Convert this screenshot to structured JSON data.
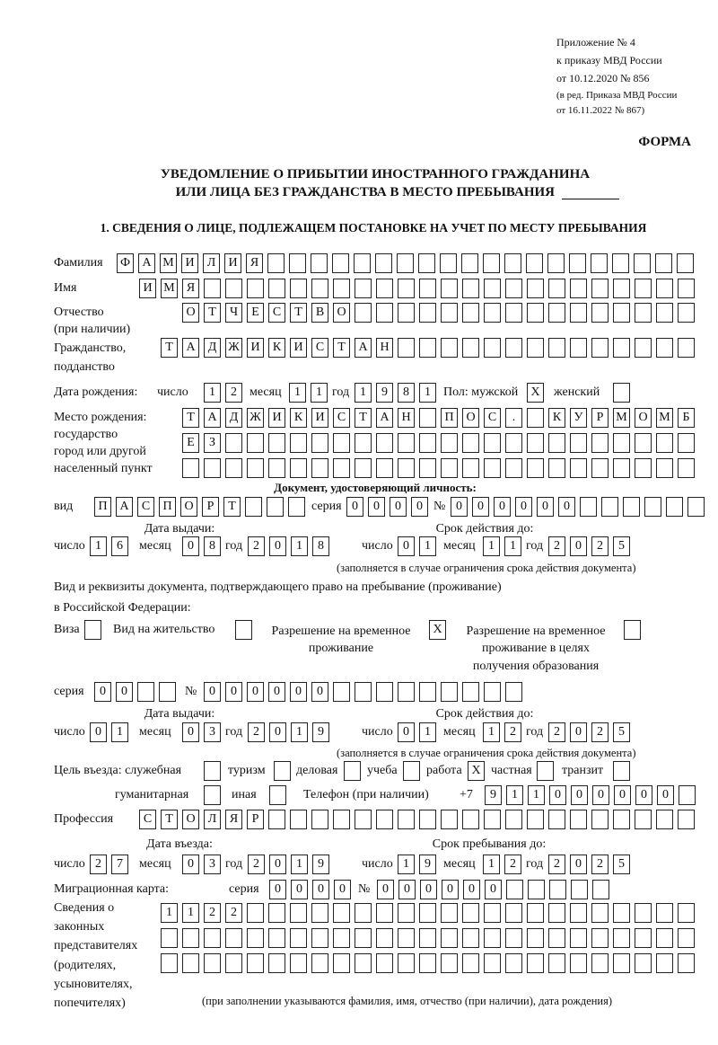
{
  "header": {
    "appendix": [
      "Приложение № 4",
      "к приказу МВД России",
      "от 10.12.2020 № 856"
    ],
    "amendment": [
      "(в ред. Приказа МВД России",
      "от 16.11.2022 № 867)"
    ],
    "form_label": "ФОРМА",
    "title_line1": "УВЕДОМЛЕНИЕ О ПРИБЫТИИ ИНОСТРАННОГО ГРАЖДАНИНА",
    "title_line2": "ИЛИ ЛИЦА БЕЗ ГРАЖДАНСТВА В МЕСТО ПРЕБЫВАНИЯ",
    "section1": "1. СВЕДЕНИЯ О ЛИЦЕ, ПОДЛЕЖАЩЕМ ПОСТАНОВКЕ НА УЧЕТ ПО МЕСТУ ПРЕБЫВАНИЯ"
  },
  "labels": {
    "surname": "Фамилия",
    "name": "Имя",
    "patronymic": "Отчество",
    "patronymic_note": "(при наличии)",
    "citizenship": "Гражданство,",
    "citizenship2": "подданство",
    "birth_date": "Дата рождения:",
    "day": "число",
    "month": "месяц",
    "year": "год",
    "sex": "Пол: мужской",
    "female": "женский",
    "birth_place": [
      "Место рождения:",
      "государство",
      "город или другой",
      "населенный пункт"
    ],
    "id_doc": "Документ, удостоверяющий личность:",
    "kind": "вид",
    "series": "серия",
    "number": "№",
    "issue_date": "Дата выдачи:",
    "valid_until": "Срок действия до:",
    "validity_note": "(заполняется в случае ограничения срока действия документа)",
    "residence_doc": "Вид и реквизиты документа, подтверждающего право на пребывание (проживание)",
    "residence_doc2": "в Российской Федерации:",
    "visa": "Виза",
    "residence_permit": "Вид на жительство",
    "temp_permit": [
      "Разрешение на временное",
      "проживание"
    ],
    "temp_permit_edu": [
      "Разрешение на временное",
      "проживание в целях",
      "получения образования"
    ],
    "purpose": "Цель въезда: служебная",
    "tourism": "туризм",
    "business": "деловая",
    "study": "учеба",
    "work": "работа",
    "private": "частная",
    "transit": "транзит",
    "humanitarian": "гуманитарная",
    "other": "иная",
    "phone": "Телефон (при наличии)",
    "phone_prefix": "+7",
    "profession": "Профессия",
    "entry_date": "Дата въезда:",
    "stay_until": "Срок пребывания до:",
    "migration_card": "Миграционная карта:",
    "representatives": [
      "Сведения о",
      "законных",
      "представителях",
      "(родителях,",
      "усыновителях,",
      "попечителях)"
    ],
    "representatives_note": "(при заполнении указываются фамилия, имя, отчество (при наличии), дата рождения)"
  },
  "values": {
    "surname": "ФАМИЛИЯ",
    "name": "ИМЯ",
    "patronymic": "ОТЧЕСТВО",
    "citizenship": "ТАДЖИКИСТАН",
    "birth_day": "12",
    "birth_month": "11",
    "birth_year": "1981",
    "sex_male": "X",
    "sex_female": "",
    "birth_place_1": "ТАДЖИКИСТАН ПОС. КУРМОМБ",
    "birth_place_2": "ЕЗ",
    "birth_place_3": "",
    "id_kind": "ПАСПОРТ",
    "id_series": "0000",
    "id_number": "000000",
    "id_issue_day": "16",
    "id_issue_month": "08",
    "id_issue_year": "2018",
    "id_valid_day": "01",
    "id_valid_month": "11",
    "id_valid_year": "2025",
    "visa": "",
    "residence_permit": "",
    "temp_permit": "X",
    "temp_permit_edu": "",
    "res_series": "00",
    "res_number": "000000",
    "res_issue_day": "01",
    "res_issue_month": "03",
    "res_issue_year": "2019",
    "res_valid_day": "01",
    "res_valid_month": "12",
    "res_valid_year": "2025",
    "purpose_official": "",
    "purpose_tourism": "",
    "purpose_business": "",
    "purpose_study": "",
    "purpose_work": "X",
    "purpose_private": "",
    "purpose_transit": "",
    "purpose_humanitarian": "",
    "purpose_other": "",
    "phone": "911000000",
    "profession": "СТОЛЯР",
    "entry_day": "27",
    "entry_month": "03",
    "entry_year": "2019",
    "stay_day": "19",
    "stay_month": "12",
    "stay_year": "2025",
    "mc_series": "0000",
    "mc_number": "000000",
    "rep_1": "1122",
    "rep_2": "",
    "rep_3": ""
  }
}
